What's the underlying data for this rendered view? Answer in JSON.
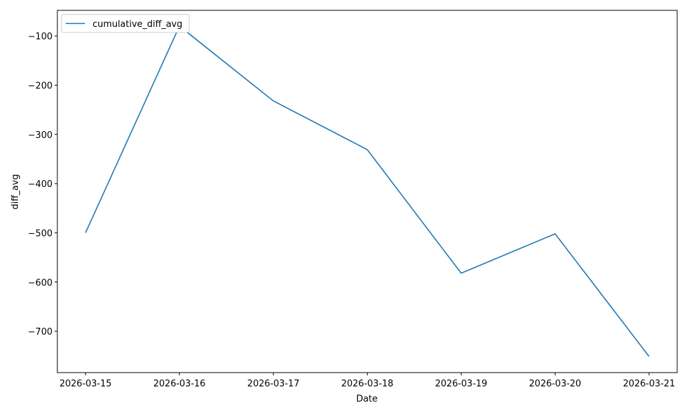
{
  "chart_data": {
    "type": "line",
    "x": [
      "2026-03-15",
      "2026-03-16",
      "2026-03-17",
      "2026-03-18",
      "2026-03-19",
      "2026-03-20",
      "2026-03-21"
    ],
    "series": [
      {
        "name": "cumulative_diff_avg",
        "color": "#1f77b4",
        "values": [
          -500,
          -80,
          -232,
          -331,
          -582,
          -502,
          -751
        ]
      }
    ],
    "xlabel": "Date",
    "ylabel": "diff_avg",
    "ylim": [
      -784,
      -48
    ],
    "yticks": [
      {
        "value": -100,
        "label": "−100"
      },
      {
        "value": -200,
        "label": "−200"
      },
      {
        "value": -300,
        "label": "−300"
      },
      {
        "value": -400,
        "label": "−400"
      },
      {
        "value": -500,
        "label": "−500"
      },
      {
        "value": -600,
        "label": "−600"
      },
      {
        "value": -700,
        "label": "−700"
      }
    ],
    "legend": "upper left"
  }
}
